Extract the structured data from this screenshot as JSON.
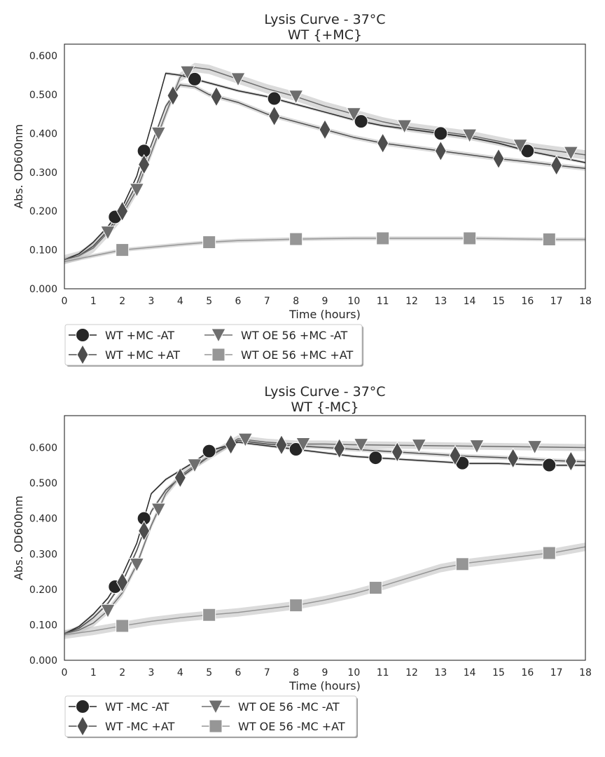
{
  "chart_data": [
    {
      "type": "line",
      "title": "Lysis Curve - 37°C",
      "subtitle": "WT {+MC}",
      "xlabel": "Time (hours)",
      "ylabel": "Abs. OD600nm",
      "xlim": [
        0,
        18
      ],
      "ylim": [
        0,
        0.63
      ],
      "xticks": [
        "0",
        "1",
        "2",
        "3",
        "4",
        "5",
        "6",
        "7",
        "8",
        "9",
        "10",
        "11",
        "12",
        "13",
        "14",
        "15",
        "16",
        "17",
        "18"
      ],
      "yticks": [
        "0.000",
        "0.100",
        "0.200",
        "0.300",
        "0.400",
        "0.500",
        "0.600"
      ],
      "grid": false,
      "legend": "below",
      "series": [
        {
          "name": "WT +MC -AT",
          "marker": "circle",
          "color": "#262626",
          "x": [
            0,
            0.5,
            1,
            1.5,
            2,
            2.5,
            3,
            3.5,
            4,
            4.5,
            5,
            6,
            7,
            8,
            9,
            10,
            11,
            12,
            13,
            14,
            15,
            16,
            17,
            18
          ],
          "y": [
            0.075,
            0.09,
            0.12,
            0.16,
            0.21,
            0.29,
            0.42,
            0.555,
            0.55,
            0.54,
            0.53,
            0.51,
            0.495,
            0.475,
            0.455,
            0.435,
            0.42,
            0.41,
            0.4,
            0.39,
            0.375,
            0.355,
            0.34,
            0.325
          ],
          "markers_x": [
            1.75,
            2.75,
            4.5,
            7.25,
            10.25,
            13.0,
            16.0
          ],
          "band": 0.004
        },
        {
          "name": "WT +MC +AT",
          "marker": "diamond",
          "color": "#4d4d4d",
          "x": [
            0,
            0.5,
            1,
            1.5,
            2,
            2.5,
            3,
            3.5,
            4,
            4.5,
            5,
            6,
            7,
            8,
            9,
            10,
            11,
            12,
            13,
            14,
            15,
            16,
            17,
            18
          ],
          "y": [
            0.075,
            0.085,
            0.11,
            0.15,
            0.2,
            0.27,
            0.37,
            0.47,
            0.525,
            0.52,
            0.5,
            0.48,
            0.45,
            0.43,
            0.41,
            0.39,
            0.375,
            0.365,
            0.355,
            0.345,
            0.335,
            0.327,
            0.318,
            0.31
          ],
          "markers_x": [
            2.0,
            2.75,
            3.75,
            5.25,
            7.25,
            9.0,
            11.0,
            13.0,
            15.0,
            17.0
          ],
          "band": 0.006
        },
        {
          "name": "WT OE 56 +MC -AT",
          "marker": "triangle-down",
          "color": "#6e6e6e",
          "x": [
            0,
            0.5,
            1,
            1.5,
            2,
            2.5,
            3,
            3.5,
            4,
            4.5,
            5,
            6,
            7,
            8,
            9,
            10,
            11,
            12,
            13,
            14,
            15,
            16,
            17,
            18
          ],
          "y": [
            0.075,
            0.085,
            0.105,
            0.145,
            0.19,
            0.255,
            0.35,
            0.45,
            0.545,
            0.57,
            0.565,
            0.54,
            0.515,
            0.495,
            0.47,
            0.45,
            0.43,
            0.415,
            0.405,
            0.395,
            0.38,
            0.365,
            0.355,
            0.345
          ],
          "markers_x": [
            1.5,
            2.5,
            3.25,
            4.25,
            6.0,
            8.0,
            10.0,
            11.75,
            14.0,
            15.75,
            17.5
          ],
          "band": 0.012
        },
        {
          "name": "WT OE 56 +MC +AT",
          "marker": "square",
          "color": "#969696",
          "x": [
            0,
            1,
            2,
            3,
            4,
            5,
            6,
            7,
            8,
            9,
            10,
            11,
            12,
            13,
            14,
            15,
            16,
            17,
            18
          ],
          "y": [
            0.07,
            0.085,
            0.1,
            0.107,
            0.114,
            0.12,
            0.124,
            0.126,
            0.128,
            0.129,
            0.13,
            0.13,
            0.13,
            0.13,
            0.13,
            0.129,
            0.128,
            0.127,
            0.127
          ],
          "markers_x": [
            2.0,
            5.0,
            8.0,
            11.0,
            14.0,
            16.75
          ],
          "band": 0.005
        }
      ]
    },
    {
      "type": "line",
      "title": "Lysis Curve - 37°C",
      "subtitle": "WT {-MC}",
      "xlabel": "Time (hours)",
      "ylabel": "Abs. OD600nm",
      "xlim": [
        0,
        18
      ],
      "ylim": [
        0,
        0.69
      ],
      "xticks": [
        "0",
        "1",
        "2",
        "3",
        "4",
        "5",
        "6",
        "7",
        "8",
        "9",
        "10",
        "11",
        "12",
        "13",
        "14",
        "15",
        "16",
        "17",
        "18"
      ],
      "yticks": [
        "0.000",
        "0.100",
        "0.200",
        "0.300",
        "0.400",
        "0.500",
        "0.600"
      ],
      "grid": false,
      "legend": "below",
      "series": [
        {
          "name": "WT -MC -AT",
          "marker": "circle",
          "color": "#262626",
          "x": [
            0,
            0.5,
            1,
            1.5,
            2,
            2.5,
            3,
            3.5,
            4,
            4.5,
            5,
            6,
            7,
            8,
            9,
            10,
            11,
            12,
            13,
            14,
            15,
            16,
            17,
            18
          ],
          "y": [
            0.075,
            0.095,
            0.13,
            0.175,
            0.24,
            0.33,
            0.47,
            0.51,
            0.535,
            0.56,
            0.59,
            0.615,
            0.605,
            0.595,
            0.585,
            0.575,
            0.57,
            0.565,
            0.56,
            0.555,
            0.555,
            0.552,
            0.55,
            0.55
          ],
          "markers_x": [
            1.75,
            2.75,
            5.0,
            8.0,
            10.75,
            13.75,
            16.75
          ],
          "band": 0.004
        },
        {
          "name": "WT -MC +AT",
          "marker": "diamond",
          "color": "#4d4d4d",
          "x": [
            0,
            0.5,
            1,
            1.5,
            2,
            2.5,
            3,
            3.5,
            4,
            4.5,
            5,
            6,
            7,
            8,
            9,
            10,
            11,
            12,
            13,
            14,
            15,
            16,
            17,
            18
          ],
          "y": [
            0.075,
            0.09,
            0.12,
            0.16,
            0.22,
            0.31,
            0.42,
            0.48,
            0.515,
            0.545,
            0.575,
            0.62,
            0.61,
            0.605,
            0.6,
            0.595,
            0.59,
            0.585,
            0.58,
            0.575,
            0.572,
            0.568,
            0.563,
            0.56
          ],
          "markers_x": [
            2.0,
            2.75,
            4.0,
            5.75,
            7.5,
            9.5,
            11.5,
            13.5,
            15.5,
            17.5
          ],
          "band": 0.006
        },
        {
          "name": "WT OE 56 -MC -AT",
          "marker": "triangle-down",
          "color": "#6e6e6e",
          "x": [
            0,
            0.5,
            1,
            1.5,
            2,
            2.5,
            3,
            3.5,
            4,
            4.5,
            5,
            6,
            7,
            8,
            9,
            10,
            11,
            12,
            13,
            14,
            15,
            16,
            17,
            18
          ],
          "y": [
            0.075,
            0.085,
            0.105,
            0.14,
            0.19,
            0.27,
            0.38,
            0.47,
            0.52,
            0.55,
            0.575,
            0.625,
            0.615,
            0.61,
            0.61,
            0.608,
            0.607,
            0.606,
            0.605,
            0.604,
            0.603,
            0.602,
            0.601,
            0.6
          ],
          "markers_x": [
            1.5,
            2.5,
            3.25,
            4.5,
            6.25,
            8.25,
            10.25,
            12.25,
            14.25,
            16.25
          ],
          "band": 0.01
        },
        {
          "name": "WT OE 56 -MC +AT",
          "marker": "square",
          "color": "#969696",
          "x": [
            0,
            1,
            2,
            3,
            4,
            5,
            6,
            7,
            8,
            9,
            10,
            11,
            12,
            13,
            14,
            15,
            16,
            17,
            18
          ],
          "y": [
            0.072,
            0.083,
            0.097,
            0.11,
            0.12,
            0.128,
            0.135,
            0.145,
            0.155,
            0.17,
            0.188,
            0.21,
            0.235,
            0.26,
            0.275,
            0.285,
            0.295,
            0.305,
            0.32
          ],
          "markers_x": [
            2.0,
            5.0,
            8.0,
            10.75,
            13.75,
            16.75
          ],
          "band": 0.012
        }
      ]
    }
  ]
}
